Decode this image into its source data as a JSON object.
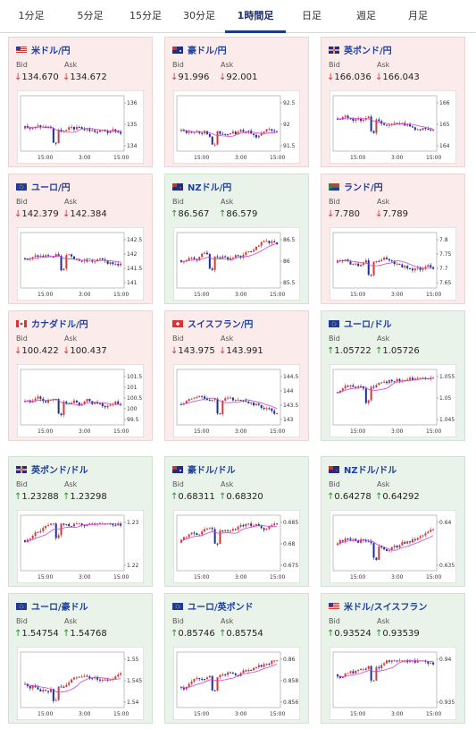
{
  "tabs": [
    {
      "label": "1分足",
      "active": false
    },
    {
      "label": "5分足",
      "active": false
    },
    {
      "label": "15分足",
      "active": false
    },
    {
      "label": "30分足",
      "active": false
    },
    {
      "label": "1時間足",
      "active": true
    },
    {
      "label": "日足",
      "active": false
    },
    {
      "label": "週足",
      "active": false
    },
    {
      "label": "月足",
      "active": false
    }
  ],
  "labels": {
    "bid": "Bid",
    "ask": "Ask"
  },
  "colors": {
    "up_candle": "#d03a3a",
    "down_candle": "#1b2f9a",
    "ma": "#d640d0",
    "card_down_bg": "#fcebeb",
    "card_up_bg": "#eaf3ea",
    "title": "#1c3fa0"
  },
  "cards": [
    {
      "pair": "米ドル/円",
      "flag": "us-flag-icon",
      "dir": "down",
      "bid": "134.670",
      "ask": "134.672",
      "chart_data": {
        "type": "candlestick",
        "y_ticks": [
          "136",
          "135",
          "134"
        ],
        "x_ticks": [
          "15:00",
          "3:00",
          "15:00"
        ]
      }
    },
    {
      "pair": "豪ドル/円",
      "flag": "au-flag-icon",
      "dir": "down",
      "bid": "91.996",
      "ask": "92.001",
      "chart_data": {
        "type": "candlestick",
        "y_ticks": [
          "92.5",
          "92",
          "91.5"
        ],
        "x_ticks": [
          "15:00",
          "3:00",
          "15:00"
        ]
      }
    },
    {
      "pair": "英ポンド/円",
      "flag": "gb-flag-icon",
      "dir": "down",
      "bid": "166.036",
      "ask": "166.043",
      "chart_data": {
        "type": "candlestick",
        "y_ticks": [
          "166",
          "165",
          "164"
        ],
        "x_ticks": [
          "15:00",
          "3:00",
          "15:00"
        ]
      }
    },
    {
      "pair": "ユーロ/円",
      "flag": "eu-flag-icon",
      "dir": "down",
      "bid": "142.379",
      "ask": "142.384",
      "chart_data": {
        "type": "candlestick",
        "y_ticks": [
          "142.5",
          "142",
          "141.5",
          "141"
        ],
        "x_ticks": [
          "15:00",
          "3:00",
          "15:00"
        ]
      }
    },
    {
      "pair": "NZドル/円",
      "flag": "nz-flag-icon",
      "dir": "up",
      "bid": "86.567",
      "ask": "86.579",
      "chart_data": {
        "type": "candlestick",
        "y_ticks": [
          "86.5",
          "86",
          "85.5"
        ],
        "x_ticks": [
          "15:00",
          "3:00",
          "15:00"
        ]
      }
    },
    {
      "pair": "ランド/円",
      "flag": "za-flag-icon",
      "dir": "down",
      "bid": "7.780",
      "ask": "7.789",
      "chart_data": {
        "type": "candlestick",
        "y_ticks": [
          "7.8",
          "7.75",
          "7.7",
          "7.65"
        ],
        "x_ticks": [
          "15:00",
          "3:00",
          "15:00"
        ]
      }
    },
    {
      "pair": "カナダドル/円",
      "flag": "ca-flag-icon",
      "dir": "down",
      "bid": "100.422",
      "ask": "100.437",
      "chart_data": {
        "type": "candlestick",
        "y_ticks": [
          "101.5",
          "101",
          "100.5",
          "100",
          "99.5"
        ],
        "x_ticks": [
          "15:00",
          "3:00",
          "15:00"
        ]
      }
    },
    {
      "pair": "スイスフラン/円",
      "flag": "ch-flag-icon",
      "dir": "down",
      "bid": "143.975",
      "ask": "143.991",
      "chart_data": {
        "type": "candlestick",
        "y_ticks": [
          "144.5",
          "144",
          "143.5",
          "143"
        ],
        "x_ticks": [
          "15:00",
          "3:00",
          "15:00"
        ]
      }
    },
    {
      "pair": "ユーロ/ドル",
      "flag": "eu-flag-icon",
      "dir": "up",
      "bid": "1.05722",
      "ask": "1.05726",
      "chart_data": {
        "type": "candlestick",
        "y_ticks": [
          "1.055",
          "1.05",
          "1.045"
        ],
        "x_ticks": [
          "15:00",
          "3:00",
          "15:00"
        ]
      }
    },
    {
      "pair": "英ポンド/ドル",
      "flag": "gb-flag-icon",
      "dir": "up",
      "bid": "1.23288",
      "ask": "1.23298",
      "chart_data": {
        "type": "candlestick",
        "y_ticks": [
          "1.23",
          "1.22"
        ],
        "x_ticks": [
          "15:00",
          "3:00",
          "15:00"
        ]
      }
    },
    {
      "pair": "豪ドル/ドル",
      "flag": "au-flag-icon",
      "dir": "up",
      "bid": "0.68311",
      "ask": "0.68320",
      "chart_data": {
        "type": "candlestick",
        "y_ticks": [
          "0.685",
          "0.68",
          "0.675"
        ],
        "x_ticks": [
          "15:00",
          "3:00",
          "15:00"
        ]
      }
    },
    {
      "pair": "NZドル/ドル",
      "flag": "nz-flag-icon",
      "dir": "up",
      "bid": "0.64278",
      "ask": "0.64292",
      "chart_data": {
        "type": "candlestick",
        "y_ticks": [
          "0.64",
          "0.635"
        ],
        "x_ticks": [
          "15:00",
          "3:00",
          "15:00"
        ]
      }
    },
    {
      "pair": "ユーロ/豪ドル",
      "flag": "eu-flag-icon",
      "dir": "up",
      "bid": "1.54754",
      "ask": "1.54768",
      "chart_data": {
        "type": "candlestick",
        "y_ticks": [
          "1.55",
          "1.545",
          "1.54"
        ],
        "x_ticks": [
          "15:00",
          "3:00",
          "15:00"
        ]
      }
    },
    {
      "pair": "ユーロ/英ポンド",
      "flag": "eu-flag-icon",
      "dir": "up",
      "bid": "0.85746",
      "ask": "0.85754",
      "chart_data": {
        "type": "candlestick",
        "y_ticks": [
          "0.86",
          "0.858",
          "0.856"
        ],
        "x_ticks": [
          "15:00",
          "3:00",
          "15:00"
        ]
      }
    },
    {
      "pair": "米ドル/スイスフラン",
      "flag": "us-flag-icon",
      "dir": "up",
      "bid": "0.93524",
      "ask": "0.93539",
      "chart_data": {
        "type": "candlestick",
        "y_ticks": [
          "0.94",
          "0.935"
        ],
        "x_ticks": [
          "15:00",
          "3:00",
          "15:00"
        ]
      }
    }
  ]
}
